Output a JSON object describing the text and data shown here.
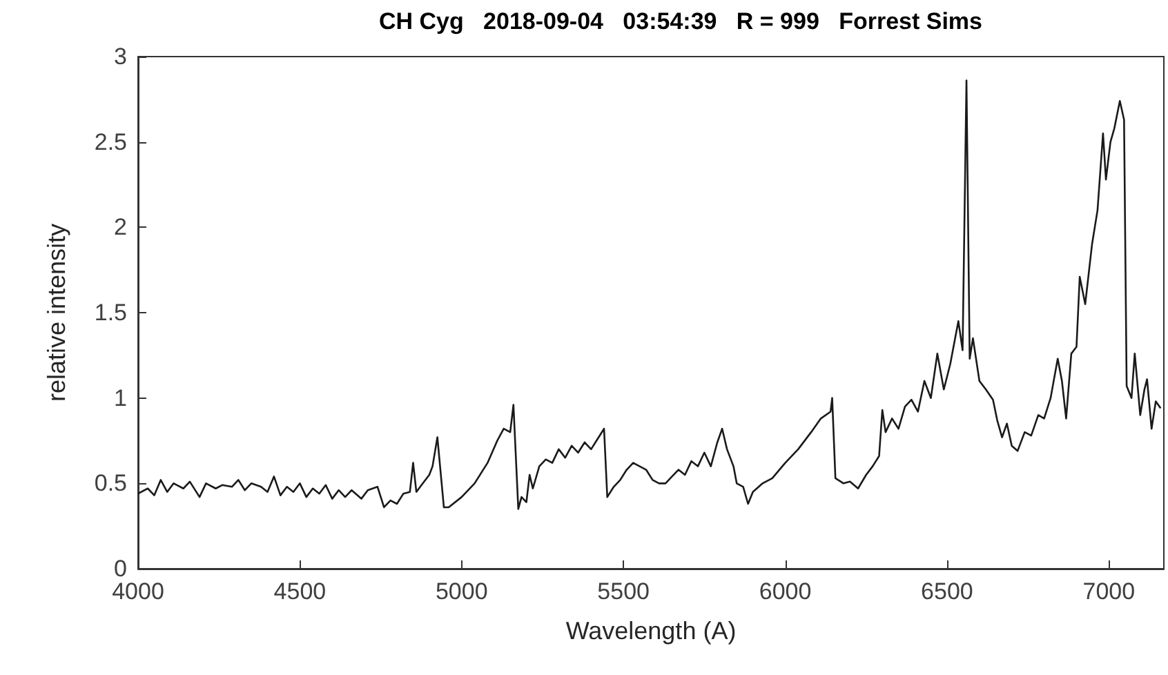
{
  "chart_data": {
    "type": "line",
    "title": "CH Cyg   2018-09-04   03:54:39   R = 999   Forrest Sims",
    "xlabel": "Wavelength (A)",
    "ylabel": "relative intensity",
    "xlim": [
      4000,
      7170
    ],
    "xticks": [
      4000,
      4500,
      5000,
      5500,
      6000,
      6500,
      7000
    ],
    "ylim": [
      0,
      3
    ],
    "yticks": [
      0,
      0.5,
      1,
      1.5,
      2,
      2.5,
      3
    ],
    "grid": false,
    "marker": "none",
    "line_style": "solid",
    "x": [
      4000,
      4030,
      4050,
      4070,
      4090,
      4110,
      4140,
      4160,
      4190,
      4210,
      4240,
      4260,
      4290,
      4310,
      4330,
      4350,
      4380,
      4400,
      4420,
      4440,
      4460,
      4480,
      4500,
      4520,
      4540,
      4560,
      4580,
      4600,
      4620,
      4640,
      4660,
      4690,
      4710,
      4740,
      4760,
      4780,
      4800,
      4820,
      4840,
      4850,
      4860,
      4880,
      4900,
      4910,
      4925,
      4945,
      4960,
      5000,
      5040,
      5080,
      5110,
      5130,
      5150,
      5160,
      5175,
      5185,
      5200,
      5210,
      5220,
      5240,
      5260,
      5280,
      5300,
      5320,
      5340,
      5360,
      5380,
      5400,
      5420,
      5440,
      5450,
      5470,
      5490,
      5510,
      5530,
      5550,
      5570,
      5590,
      5610,
      5630,
      5650,
      5670,
      5690,
      5710,
      5730,
      5750,
      5770,
      5790,
      5805,
      5820,
      5840,
      5850,
      5870,
      5885,
      5900,
      5930,
      5960,
      6000,
      6040,
      6080,
      6110,
      6140,
      6145,
      6155,
      6180,
      6200,
      6225,
      6250,
      6270,
      6290,
      6300,
      6310,
      6330,
      6350,
      6370,
      6390,
      6410,
      6430,
      6450,
      6470,
      6490,
      6510,
      6535,
      6548,
      6560,
      6570,
      6580,
      6600,
      6620,
      6642,
      6655,
      6670,
      6685,
      6700,
      6718,
      6740,
      6760,
      6782,
      6800,
      6820,
      6842,
      6855,
      6868,
      6884,
      6900,
      6910,
      6927,
      6948,
      6965,
      6982,
      6991,
      7005,
      7017,
      7034,
      7047,
      7055,
      7070,
      7080,
      7097,
      7110,
      7118,
      7132,
      7145,
      7160
    ],
    "series": [
      {
        "color": "#1a1a1a",
        "values": [
          0.44,
          0.47,
          0.43,
          0.52,
          0.45,
          0.5,
          0.47,
          0.51,
          0.42,
          0.5,
          0.47,
          0.49,
          0.48,
          0.52,
          0.46,
          0.5,
          0.48,
          0.45,
          0.54,
          0.43,
          0.48,
          0.45,
          0.5,
          0.42,
          0.47,
          0.44,
          0.49,
          0.41,
          0.46,
          0.42,
          0.46,
          0.41,
          0.46,
          0.48,
          0.36,
          0.4,
          0.38,
          0.44,
          0.45,
          0.62,
          0.45,
          0.5,
          0.55,
          0.6,
          0.77,
          0.36,
          0.36,
          0.42,
          0.5,
          0.62,
          0.75,
          0.82,
          0.8,
          0.96,
          0.35,
          0.42,
          0.39,
          0.55,
          0.47,
          0.6,
          0.64,
          0.62,
          0.7,
          0.65,
          0.72,
          0.68,
          0.74,
          0.7,
          0.76,
          0.82,
          0.42,
          0.48,
          0.52,
          0.58,
          0.62,
          0.6,
          0.58,
          0.52,
          0.5,
          0.5,
          0.54,
          0.58,
          0.55,
          0.63,
          0.6,
          0.68,
          0.6,
          0.74,
          0.82,
          0.7,
          0.6,
          0.5,
          0.48,
          0.38,
          0.45,
          0.5,
          0.53,
          0.62,
          0.7,
          0.8,
          0.88,
          0.92,
          1.0,
          0.53,
          0.5,
          0.51,
          0.47,
          0.55,
          0.6,
          0.66,
          0.93,
          0.8,
          0.88,
          0.82,
          0.95,
          0.99,
          0.92,
          1.1,
          1.0,
          1.26,
          1.05,
          1.2,
          1.45,
          1.28,
          2.86,
          1.23,
          1.35,
          1.1,
          1.05,
          0.99,
          0.87,
          0.77,
          0.85,
          0.72,
          0.69,
          0.8,
          0.78,
          0.9,
          0.88,
          1.0,
          1.23,
          1.1,
          0.88,
          1.26,
          1.3,
          1.71,
          1.55,
          1.9,
          2.1,
          2.55,
          2.28,
          2.5,
          2.58,
          2.74,
          2.63,
          1.07,
          1.0,
          1.26,
          0.9,
          1.05,
          1.11,
          0.82,
          0.98,
          0.94
        ]
      }
    ]
  }
}
